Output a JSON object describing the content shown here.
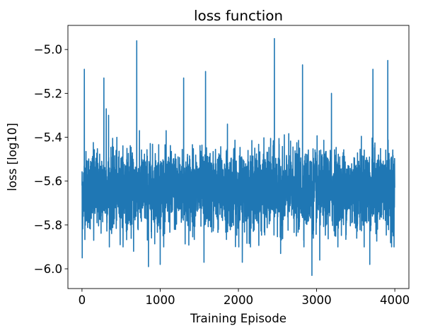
{
  "chart_data": {
    "type": "line",
    "title": "loss function",
    "xlabel": "Training Episode",
    "ylabel": "loss [log10]",
    "xlim": [
      -180,
      4180
    ],
    "ylim": [
      -6.09,
      -4.89
    ],
    "xticks": [
      0,
      1000,
      2000,
      3000,
      4000
    ],
    "xtick_labels": [
      "0",
      "1000",
      "2000",
      "3000",
      "4000"
    ],
    "yticks": [
      -6.0,
      -5.8,
      -5.6,
      -5.4,
      -5.2,
      -5.0
    ],
    "ytick_labels": [
      "−6.0",
      "−5.8",
      "−5.6",
      "−5.4",
      "−5.2",
      "−5.0"
    ],
    "grid": false,
    "series": [
      {
        "color": "#1f77b4",
        "n_points": 4000,
        "x_range": [
          0,
          3999
        ],
        "baseline": -5.64,
        "typical_band": [
          -5.82,
          -5.44
        ],
        "notable_points": [
          {
            "x": 0,
            "y": -5.62
          },
          {
            "x": 3,
            "y": -5.95
          },
          {
            "x": 30,
            "y": -5.09
          },
          {
            "x": 150,
            "y": -5.87
          },
          {
            "x": 280,
            "y": -5.13
          },
          {
            "x": 310,
            "y": -5.27
          },
          {
            "x": 340,
            "y": -5.3
          },
          {
            "x": 660,
            "y": -5.92
          },
          {
            "x": 700,
            "y": -4.96
          },
          {
            "x": 850,
            "y": -5.99
          },
          {
            "x": 1000,
            "y": -5.98
          },
          {
            "x": 1300,
            "y": -5.13
          },
          {
            "x": 1560,
            "y": -5.97
          },
          {
            "x": 1580,
            "y": -5.1
          },
          {
            "x": 1860,
            "y": -5.34
          },
          {
            "x": 2050,
            "y": -5.97
          },
          {
            "x": 2460,
            "y": -4.95
          },
          {
            "x": 2540,
            "y": -5.93
          },
          {
            "x": 2820,
            "y": -5.07
          },
          {
            "x": 2940,
            "y": -6.03
          },
          {
            "x": 3040,
            "y": -5.96
          },
          {
            "x": 3190,
            "y": -5.2
          },
          {
            "x": 3680,
            "y": -5.98
          },
          {
            "x": 3720,
            "y": -5.09
          },
          {
            "x": 3910,
            "y": -5.05
          },
          {
            "x": 3990,
            "y": -5.9
          },
          {
            "x": 3999,
            "y": -5.63
          }
        ]
      }
    ]
  }
}
